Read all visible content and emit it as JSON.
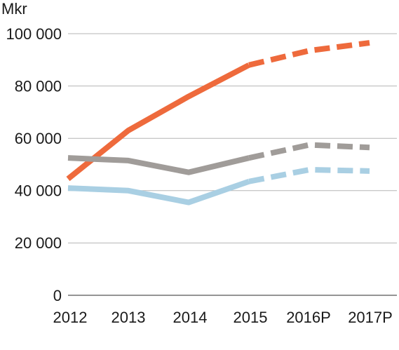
{
  "chart_data": {
    "type": "line",
    "ylabel": "Mkr",
    "xlabel": "",
    "categories": [
      "2012",
      "2013",
      "2014",
      "2015",
      "2016P",
      "2017P"
    ],
    "ylim": [
      0,
      100000
    ],
    "yticks": [
      0,
      20000,
      40000,
      60000,
      80000,
      100000
    ],
    "ytick_labels": [
      "0",
      "20 000",
      "40 000",
      "60 000",
      "80 000",
      "100 000"
    ],
    "grid": "horizontal",
    "forecast_style": "dashed",
    "forecast_from_category": "2015",
    "series": [
      {
        "color": "#ee6a3c",
        "values": [
          44500,
          63000,
          76000,
          88000,
          93500,
          96500
        ]
      },
      {
        "color": "#a09c99",
        "values": [
          52500,
          51500,
          47000,
          52500,
          57500,
          56500
        ]
      },
      {
        "color": "#a9cfe3",
        "values": [
          41000,
          40000,
          35500,
          43500,
          48000,
          47500
        ]
      }
    ]
  }
}
